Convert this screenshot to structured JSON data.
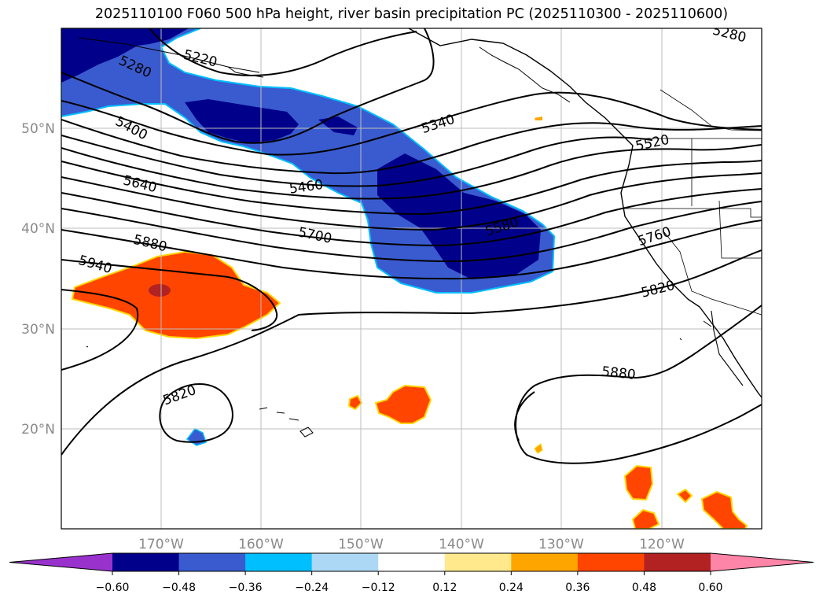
{
  "title": "2025110100 F060 500 hPa height, river basin precipitation PC (2025110300 - 2025110600)",
  "chart_data": {
    "type": "contour-map",
    "title": "2025110100 F060 500 hPa height, river basin precipitation PC (2025110300 - 2025110600)",
    "lon_labels": [
      "170°W",
      "160°W",
      "150°W",
      "140°W",
      "130°W",
      "120°W"
    ],
    "lat_labels": [
      "50°N",
      "40°N",
      "30°N",
      "20°N"
    ],
    "contour_labels": [
      "5220",
      "5280",
      "5280",
      "5340",
      "5400",
      "5460",
      "5520",
      "5580",
      "5640",
      "5700",
      "5760",
      "5820",
      "5820",
      "5880",
      "5880",
      "5940"
    ],
    "colorbar": {
      "ticks": [
        "−0.60",
        "−0.48",
        "−0.36",
        "−0.24",
        "−0.12",
        "0.12",
        "0.24",
        "0.36",
        "0.48",
        "0.60"
      ],
      "colors": [
        "#9932cc",
        "#00008b",
        "#3a5bcf",
        "#00bfff",
        "#add8f5",
        "#ffffff",
        "#ffe98c",
        "#ffa500",
        "#ff4500",
        "#b22222",
        "#ff85a8"
      ],
      "extend": "both"
    }
  }
}
